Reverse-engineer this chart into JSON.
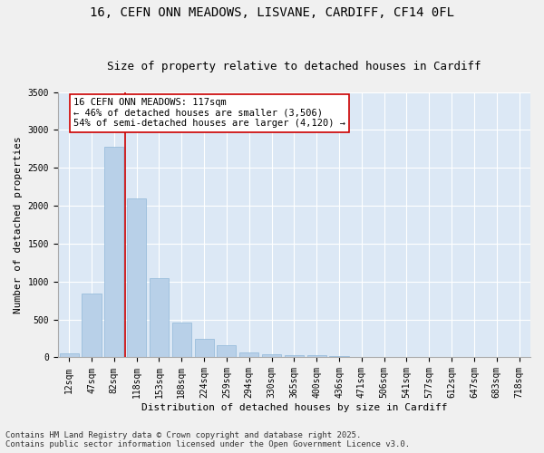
{
  "title_line1": "16, CEFN ONN MEADOWS, LISVANE, CARDIFF, CF14 0FL",
  "title_line2": "Size of property relative to detached houses in Cardiff",
  "xlabel": "Distribution of detached houses by size in Cardiff",
  "ylabel": "Number of detached properties",
  "categories": [
    "12sqm",
    "47sqm",
    "82sqm",
    "118sqm",
    "153sqm",
    "188sqm",
    "224sqm",
    "259sqm",
    "294sqm",
    "330sqm",
    "365sqm",
    "400sqm",
    "436sqm",
    "471sqm",
    "506sqm",
    "541sqm",
    "577sqm",
    "612sqm",
    "647sqm",
    "683sqm",
    "718sqm"
  ],
  "values": [
    50,
    840,
    2780,
    2100,
    1040,
    460,
    240,
    155,
    60,
    45,
    30,
    25,
    15,
    10,
    5,
    3,
    3,
    2,
    1,
    1,
    1
  ],
  "bar_color": "#b8d0e8",
  "bar_edge_color": "#90b8d8",
  "vline_x": 2.5,
  "vline_color": "#cc0000",
  "annotation_text": "16 CEFN ONN MEADOWS: 117sqm\n← 46% of detached houses are smaller (3,506)\n54% of semi-detached houses are larger (4,120) →",
  "annotation_box_color": "#ffffff",
  "annotation_border_color": "#cc0000",
  "ylim": [
    0,
    3500
  ],
  "yticks": [
    0,
    500,
    1000,
    1500,
    2000,
    2500,
    3000,
    3500
  ],
  "background_color": "#dce8f5",
  "fig_background_color": "#f0f0f0",
  "grid_color": "#ffffff",
  "footer_line1": "Contains HM Land Registry data © Crown copyright and database right 2025.",
  "footer_line2": "Contains public sector information licensed under the Open Government Licence v3.0.",
  "title_fontsize": 10,
  "subtitle_fontsize": 9,
  "axis_label_fontsize": 8,
  "tick_fontsize": 7,
  "annotation_fontsize": 7.5,
  "footer_fontsize": 6.5
}
